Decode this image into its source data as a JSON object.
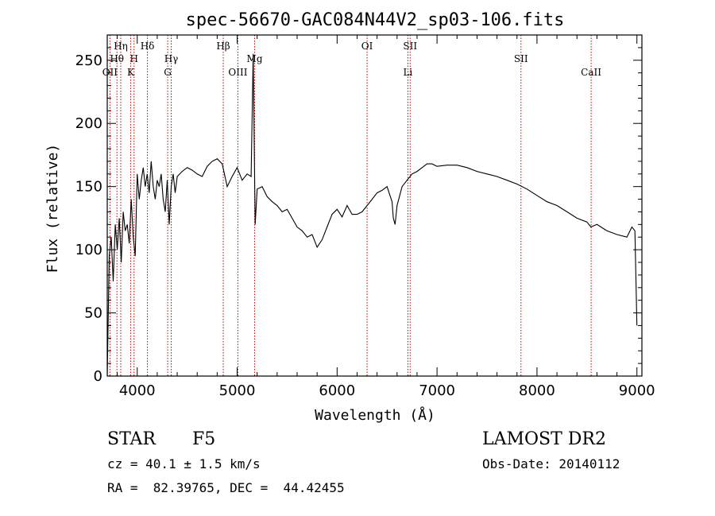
{
  "chart_data": {
    "type": "line",
    "title": "spec-56670-GAC084N44V2_sp03-106.fits",
    "xlabel": "Wavelength (Å)",
    "ylabel": "Flux (relative)",
    "xlim": [
      3700,
      9050
    ],
    "ylim": [
      0,
      270
    ],
    "x_ticks": [
      4000,
      5000,
      6000,
      7000,
      8000,
      9000
    ],
    "y_ticks": [
      0,
      50,
      100,
      150,
      200,
      250
    ],
    "grid": false,
    "series": [
      {
        "x": [
          3700,
          3720,
          3740,
          3760,
          3780,
          3800,
          3820,
          3840,
          3860,
          3880,
          3900,
          3920,
          3940,
          3960,
          3980,
          4000,
          4020,
          4040,
          4060,
          4080,
          4100,
          4120,
          4140,
          4160,
          4180,
          4200,
          4220,
          4240,
          4260,
          4280,
          4300,
          4320,
          4340,
          4360,
          4380,
          4400,
          4450,
          4500,
          4550,
          4600,
          4650,
          4700,
          4750,
          4800,
          4850,
          4900,
          4950,
          5000,
          5050,
          5100,
          5140,
          5160,
          5180,
          5200,
          5250,
          5300,
          5350,
          5400,
          5450,
          5500,
          5550,
          5600,
          5650,
          5700,
          5750,
          5800,
          5850,
          5900,
          5950,
          6000,
          6050,
          6100,
          6150,
          6200,
          6250,
          6300,
          6350,
          6400,
          6450,
          6500,
          6550,
          6563,
          6580,
          6600,
          6650,
          6700,
          6750,
          6800,
          6850,
          6900,
          6950,
          7000,
          7100,
          7200,
          7300,
          7400,
          7500,
          7600,
          7700,
          7800,
          7900,
          8000,
          8100,
          8200,
          8300,
          8400,
          8500,
          8540,
          8600,
          8700,
          8800,
          8900,
          8950,
          8980,
          9000
        ],
        "y": [
          0,
          95,
          110,
          75,
          120,
          100,
          125,
          90,
          130,
          115,
          120,
          105,
          140,
          110,
          95,
          160,
          140,
          155,
          165,
          150,
          160,
          145,
          170,
          150,
          140,
          155,
          150,
          160,
          140,
          130,
          155,
          120,
          150,
          160,
          145,
          158,
          162,
          165,
          163,
          160,
          158,
          166,
          170,
          172,
          168,
          150,
          158,
          165,
          155,
          160,
          158,
          255,
          120,
          148,
          150,
          142,
          138,
          135,
          130,
          132,
          125,
          118,
          115,
          110,
          112,
          102,
          108,
          118,
          128,
          132,
          126,
          135,
          128,
          128,
          130,
          135,
          140,
          145,
          147,
          150,
          138,
          125,
          120,
          135,
          150,
          155,
          160,
          162,
          165,
          168,
          168,
          166,
          167,
          167,
          165,
          162,
          160,
          158,
          155,
          152,
          148,
          143,
          138,
          135,
          130,
          125,
          122,
          118,
          120,
          115,
          112,
          110,
          118,
          115,
          40
        ]
      }
    ],
    "line_markers": [
      {
        "label": "Hη",
        "wavelength": 3835,
        "row": 0
      },
      {
        "label": "Hθ",
        "wavelength": 3797,
        "row": 1
      },
      {
        "label": "OII",
        "wavelength": 3727,
        "row": 2
      },
      {
        "label": "H",
        "wavelength": 3968,
        "row": 1
      },
      {
        "label": "K",
        "wavelength": 3934,
        "row": 2
      },
      {
        "label": "Hδ",
        "wavelength": 4102,
        "row": 0
      },
      {
        "label": "Hγ",
        "wavelength": 4340,
        "row": 1
      },
      {
        "label": "G",
        "wavelength": 4305,
        "row": 2
      },
      {
        "label": "Hβ",
        "wavelength": 4861,
        "row": 0
      },
      {
        "label": "OIII",
        "wavelength": 5007,
        "row": 2
      },
      {
        "label": "Mg",
        "wavelength": 5175,
        "row": 1
      },
      {
        "label": "OI",
        "wavelength": 6300,
        "row": 0
      },
      {
        "label": "SII",
        "wavelength": 6731,
        "row": 0
      },
      {
        "label": "Li",
        "wavelength": 6708,
        "row": 2
      },
      {
        "label": "SII",
        "wavelength": 7840,
        "row": 1
      },
      {
        "label": "CaII",
        "wavelength": 8542,
        "row": 2
      }
    ]
  },
  "info": {
    "class_label": "STAR",
    "subclass": "F5",
    "survey": "LAMOST DR2",
    "redshift": "cz = 40.1 ± 1.5 km/s",
    "obs_date": "Obs-Date: 20140112",
    "coords": "RA =  82.39765, DEC =  44.42455"
  }
}
